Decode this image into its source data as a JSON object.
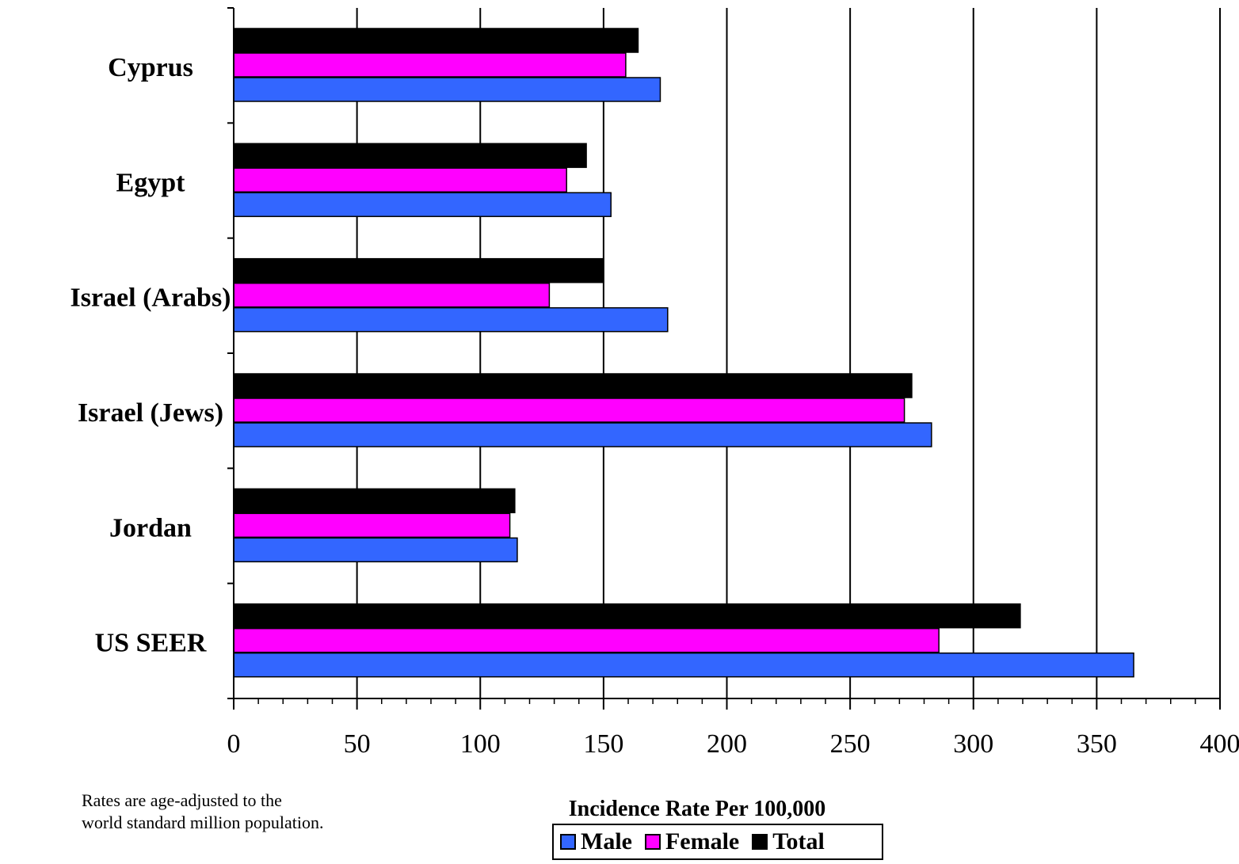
{
  "chart_data": {
    "type": "bar",
    "orientation": "horizontal",
    "categories": [
      "Cyprus",
      "Egypt",
      "Israel (Arabs)",
      "Israel (Jews)",
      "Jordan",
      "US SEER"
    ],
    "series": [
      {
        "name": "Total",
        "color": "#000000",
        "values": [
          164,
          143,
          150,
          275,
          114,
          319
        ]
      },
      {
        "name": "Female",
        "color": "#ff00ff",
        "values": [
          159,
          135,
          128,
          272,
          112,
          286
        ]
      },
      {
        "name": "Male",
        "color": "#3366ff",
        "values": [
          173,
          153,
          176,
          283,
          115,
          365
        ]
      }
    ],
    "xlabel": "Incidence Rate Per 100,000",
    "ylabel": "",
    "xlim": [
      0,
      400
    ],
    "xticks": [
      "0",
      "50",
      "100",
      "150",
      "200",
      "250",
      "300",
      "350",
      "400"
    ],
    "grid": "vertical",
    "legend_position": "bottom-center"
  },
  "note": {
    "line1": "Rates are age-adjusted to the",
    "line2": "world standard million population."
  },
  "legend": {
    "items": [
      {
        "label": "Male",
        "color": "#3366ff"
      },
      {
        "label": "Female",
        "color": "#ff00ff"
      },
      {
        "label": "Total",
        "color": "#000000"
      }
    ]
  }
}
